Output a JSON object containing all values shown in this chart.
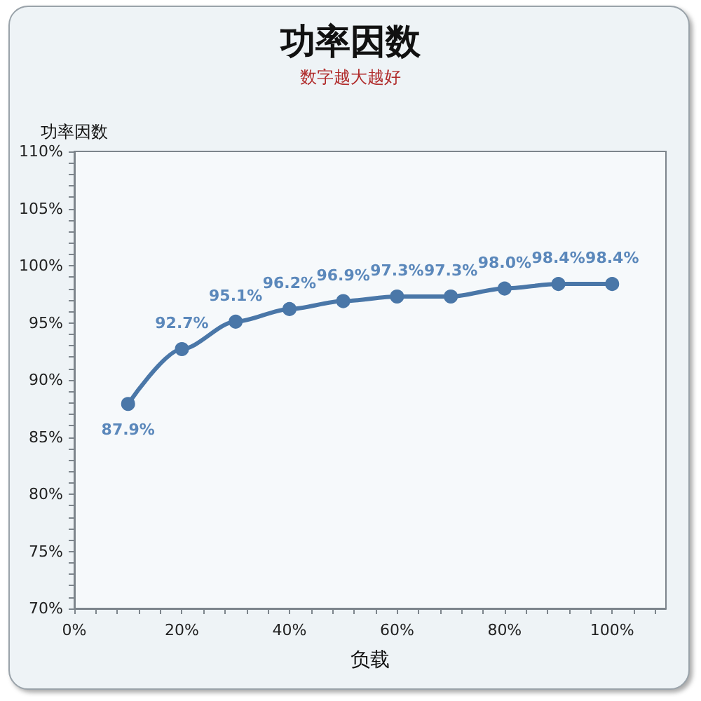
{
  "chart_data": {
    "type": "line",
    "title": "功率因数",
    "subtitle": "数字越大越好",
    "xlabel": "负载",
    "ylabel": "功率因数",
    "x": [
      10,
      20,
      30,
      40,
      50,
      60,
      70,
      80,
      90,
      100
    ],
    "series": [
      {
        "color": "#4a77a8",
        "values": [
          87.9,
          92.7,
          95.1,
          96.2,
          96.9,
          97.3,
          97.3,
          98.0,
          98.4,
          98.4
        ],
        "value_labels": [
          "87.9%",
          "92.7%",
          "95.1%",
          "96.2%",
          "96.9%",
          "97.3%",
          "97.3%",
          "98.0%",
          "98.4%",
          "98.4%"
        ]
      }
    ],
    "xlim": [
      0,
      110
    ],
    "xticks": [
      {
        "value": 0,
        "label": "0%"
      },
      {
        "value": 4,
        "label": null
      },
      {
        "value": 8,
        "label": null
      },
      {
        "value": 12,
        "label": null
      },
      {
        "value": 16,
        "label": null
      },
      {
        "value": 20,
        "label": "20%"
      },
      {
        "value": 24,
        "label": null
      },
      {
        "value": 28,
        "label": null
      },
      {
        "value": 32,
        "label": null
      },
      {
        "value": 36,
        "label": null
      },
      {
        "value": 40,
        "label": "40%"
      },
      {
        "value": 44,
        "label": null
      },
      {
        "value": 48,
        "label": null
      },
      {
        "value": 52,
        "label": null
      },
      {
        "value": 56,
        "label": null
      },
      {
        "value": 60,
        "label": "60%"
      },
      {
        "value": 64,
        "label": null
      },
      {
        "value": 68,
        "label": null
      },
      {
        "value": 72,
        "label": null
      },
      {
        "value": 76,
        "label": null
      },
      {
        "value": 80,
        "label": "80%"
      },
      {
        "value": 84,
        "label": null
      },
      {
        "value": 88,
        "label": null
      },
      {
        "value": 92,
        "label": null
      },
      {
        "value": 96,
        "label": null
      },
      {
        "value": 100,
        "label": "100%"
      },
      {
        "value": 104,
        "label": null
      },
      {
        "value": 108,
        "label": null
      }
    ],
    "ylim": [
      70,
      110
    ],
    "yticks": [
      {
        "value": 70,
        "label": "70%"
      },
      {
        "value": 71,
        "label": null
      },
      {
        "value": 72,
        "label": null
      },
      {
        "value": 73,
        "label": null
      },
      {
        "value": 74,
        "label": null
      },
      {
        "value": 75,
        "label": "75%"
      },
      {
        "value": 76,
        "label": null
      },
      {
        "value": 77,
        "label": null
      },
      {
        "value": 78,
        "label": null
      },
      {
        "value": 79,
        "label": null
      },
      {
        "value": 80,
        "label": "80%"
      },
      {
        "value": 81,
        "label": null
      },
      {
        "value": 82,
        "label": null
      },
      {
        "value": 83,
        "label": null
      },
      {
        "value": 84,
        "label": null
      },
      {
        "value": 85,
        "label": "85%"
      },
      {
        "value": 86,
        "label": null
      },
      {
        "value": 87,
        "label": null
      },
      {
        "value": 88,
        "label": null
      },
      {
        "value": 89,
        "label": null
      },
      {
        "value": 90,
        "label": "90%"
      },
      {
        "value": 91,
        "label": null
      },
      {
        "value": 92,
        "label": null
      },
      {
        "value": 93,
        "label": null
      },
      {
        "value": 94,
        "label": null
      },
      {
        "value": 95,
        "label": "95%"
      },
      {
        "value": 96,
        "label": null
      },
      {
        "value": 97,
        "label": null
      },
      {
        "value": 98,
        "label": null
      },
      {
        "value": 99,
        "label": null
      },
      {
        "value": 100,
        "label": "100%"
      },
      {
        "value": 101,
        "label": null
      },
      {
        "value": 102,
        "label": null
      },
      {
        "value": 103,
        "label": null
      },
      {
        "value": 104,
        "label": null
      },
      {
        "value": 105,
        "label": "105%"
      },
      {
        "value": 106,
        "label": null
      },
      {
        "value": 107,
        "label": null
      },
      {
        "value": 108,
        "label": null
      },
      {
        "value": 109,
        "label": null
      },
      {
        "value": 110,
        "label": "110%"
      }
    ],
    "marker": "circle",
    "line_style": "solid"
  }
}
